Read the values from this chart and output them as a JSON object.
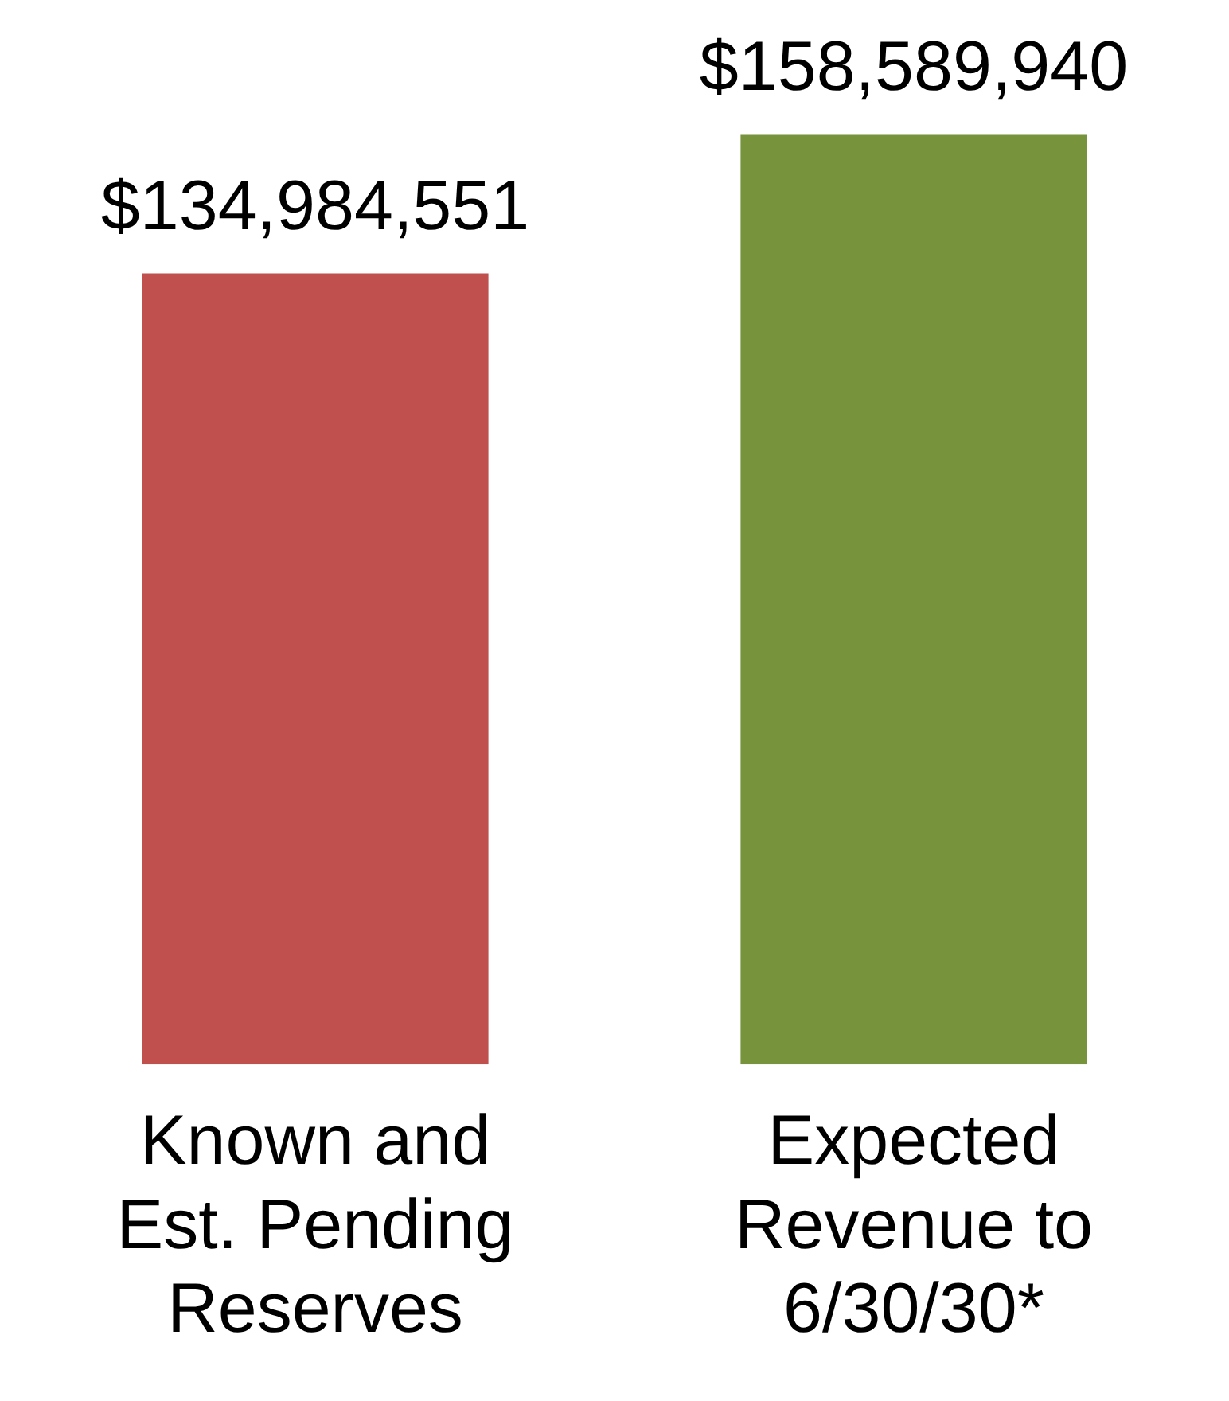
{
  "chart_data": {
    "type": "bar",
    "categories": [
      "Known and Est. Pending Reserves",
      "Expected Revenue to 6/30/30*"
    ],
    "values": [
      134984551,
      158589940
    ],
    "colors": [
      "#c0504d",
      "#77933c"
    ],
    "value_labels": [
      "$134,984,551",
      "$158,589,940"
    ],
    "grid": false,
    "legend": false
  }
}
